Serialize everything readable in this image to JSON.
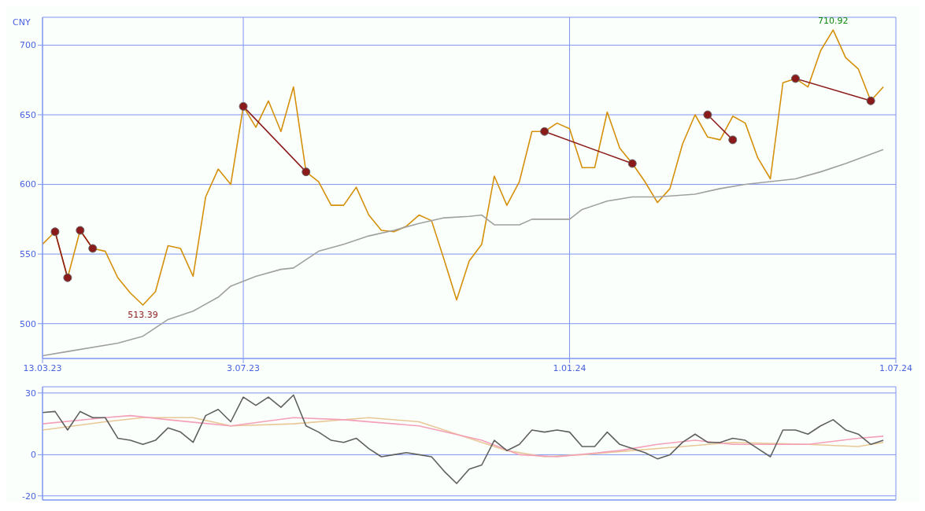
{
  "chart_data": [
    {
      "type": "line",
      "ylabel": "CNY",
      "x": [
        "2023-03-13",
        "2023-03-20",
        "2023-03-27",
        "2023-04-03",
        "2023-04-10",
        "2023-04-17",
        "2023-04-24",
        "2023-05-01",
        "2023-05-08",
        "2023-05-15",
        "2023-05-22",
        "2023-05-29",
        "2023-06-05",
        "2023-06-12",
        "2023-06-19",
        "2023-06-26",
        "2023-07-03",
        "2023-07-10",
        "2023-07-17",
        "2023-07-24",
        "2023-07-31",
        "2023-08-07",
        "2023-08-14",
        "2023-08-21",
        "2023-08-28",
        "2023-09-04",
        "2023-09-11",
        "2023-09-18",
        "2023-09-25",
        "2023-10-02",
        "2023-10-09",
        "2023-10-16",
        "2023-10-23",
        "2023-10-30",
        "2023-11-06",
        "2023-11-13",
        "2023-11-20",
        "2023-11-27",
        "2023-12-04",
        "2023-12-11",
        "2023-12-18",
        "2023-12-25",
        "2024-01-01",
        "2024-01-08",
        "2024-01-15",
        "2024-01-22",
        "2024-01-29",
        "2024-02-05",
        "2024-02-12",
        "2024-02-19",
        "2024-02-26",
        "2024-03-04",
        "2024-03-11",
        "2024-03-18",
        "2024-03-25",
        "2024-04-01",
        "2024-04-08",
        "2024-04-15",
        "2024-04-22",
        "2024-04-29",
        "2024-05-06",
        "2024-05-13",
        "2024-05-20",
        "2024-05-27",
        "2024-06-03",
        "2024-06-10",
        "2024-06-17",
        "2024-06-24"
      ],
      "series": [
        {
          "color": "#d4900a",
          "values": [
            557,
            566,
            533,
            567,
            554,
            552,
            533,
            522,
            513.39,
            523,
            556,
            554,
            534,
            591,
            611,
            600,
            656,
            641,
            660,
            638,
            670,
            609,
            602,
            585,
            585,
            598,
            578,
            567,
            566,
            570,
            578,
            574,
            546,
            517,
            545,
            557,
            606,
            585,
            602,
            638,
            638,
            644,
            640,
            612,
            612,
            652,
            626,
            615,
            602,
            587,
            597,
            629,
            650,
            634,
            632,
            649,
            644,
            619,
            604,
            673,
            676,
            670,
            696,
            710.92,
            691,
            683,
            660,
            670
          ]
        },
        {
          "color": "#a0a0a0",
          "x": [
            "2023-03-13",
            "2023-03-27",
            "2023-04-24",
            "2023-05-08",
            "2023-05-22",
            "2023-06-05",
            "2023-06-19",
            "2023-06-26",
            "2023-07-10",
            "2023-07-24",
            "2023-07-31",
            "2023-08-14",
            "2023-08-28",
            "2023-09-11",
            "2023-09-25",
            "2023-10-09",
            "2023-10-23",
            "2023-11-06",
            "2023-11-13",
            "2023-11-20",
            "2023-12-04",
            "2023-12-11",
            "2024-01-01",
            "2024-01-08",
            "2024-01-22",
            "2024-02-05",
            "2024-02-19",
            "2024-03-11",
            "2024-03-25",
            "2024-04-08",
            "2024-05-06",
            "2024-05-20",
            "2024-06-03",
            "2024-06-24"
          ],
          "values": [
            477,
            480,
            486,
            491,
            503,
            509,
            519,
            527,
            534,
            539,
            540,
            552,
            557,
            563,
            567,
            572,
            576,
            577,
            578,
            571,
            571,
            575,
            575,
            582,
            588,
            591,
            591,
            593,
            597,
            600,
            604,
            609,
            615,
            625
          ]
        },
        {
          "color": "#8b1a1a",
          "type": "line",
          "marker": "circle",
          "x": [
            "2023-03-20",
            "2023-03-27"
          ],
          "values": [
            566,
            533
          ]
        },
        {
          "color": "#8b1a1a",
          "type": "line",
          "marker": "circle",
          "x": [
            "2023-04-03",
            "2023-04-10"
          ],
          "values": [
            567,
            554
          ]
        },
        {
          "color": "#8b1a1a",
          "type": "line",
          "marker": "circle",
          "x": [
            "2023-07-03",
            "2023-08-07"
          ],
          "values": [
            656,
            609
          ]
        },
        {
          "color": "#8b1a1a",
          "type": "line",
          "marker": "circle",
          "x": [
            "2023-12-18",
            "2024-02-05"
          ],
          "values": [
            638,
            615
          ]
        },
        {
          "color": "#8b1a1a",
          "type": "line",
          "marker": "circle",
          "x": [
            "2024-03-18",
            "2024-04-01"
          ],
          "values": [
            650,
            632
          ]
        },
        {
          "color": "#8b1a1a",
          "type": "line",
          "marker": "circle",
          "x": [
            "2024-05-06",
            "2024-06-17"
          ],
          "values": [
            676,
            660
          ]
        }
      ],
      "xlim": [
        "2023-03-13",
        "2024-07-01"
      ],
      "xticks": [
        {
          "value": "2023-03-13",
          "label": "13.03.23"
        },
        {
          "value": "2023-07-03",
          "label": "3.07.23"
        },
        {
          "value": "2024-01-01",
          "label": "1.01.24"
        },
        {
          "value": "2024-07-01",
          "label": "1.07.24"
        }
      ],
      "ylim": [
        475,
        720
      ],
      "yticks": [
        500,
        550,
        600,
        650,
        700
      ],
      "grid": true,
      "marker": "none",
      "line_style": "solid",
      "annotations": [
        {
          "text": "710.92",
          "x": "2024-05-27",
          "y": 710.92
        },
        {
          "text": "513.39",
          "x": "2023-05-08",
          "y": 513.39
        }
      ]
    },
    {
      "type": "line",
      "x": [
        "2023-03-13",
        "2023-03-20",
        "2023-03-27",
        "2023-04-03",
        "2023-04-10",
        "2023-04-17",
        "2023-04-24",
        "2023-05-01",
        "2023-05-08",
        "2023-05-15",
        "2023-05-22",
        "2023-05-29",
        "2023-06-05",
        "2023-06-12",
        "2023-06-19",
        "2023-06-26",
        "2023-07-03",
        "2023-07-10",
        "2023-07-17",
        "2023-07-24",
        "2023-07-31",
        "2023-08-07",
        "2023-08-14",
        "2023-08-21",
        "2023-08-28",
        "2023-09-04",
        "2023-09-11",
        "2023-09-18",
        "2023-09-25",
        "2023-10-02",
        "2023-10-09",
        "2023-10-16",
        "2023-10-23",
        "2023-10-30",
        "2023-11-06",
        "2023-11-13",
        "2023-11-20",
        "2023-11-27",
        "2023-12-04",
        "2023-12-11",
        "2023-12-18",
        "2023-12-25",
        "2024-01-01",
        "2024-01-08",
        "2024-01-15",
        "2024-01-22",
        "2024-01-29",
        "2024-02-05",
        "2024-02-12",
        "2024-02-19",
        "2024-02-26",
        "2024-03-04",
        "2024-03-11",
        "2024-03-18",
        "2024-03-25",
        "2024-04-01",
        "2024-04-08",
        "2024-04-15",
        "2024-04-22",
        "2024-04-29",
        "2024-05-06",
        "2024-05-13",
        "2024-05-20",
        "2024-05-27",
        "2024-06-03",
        "2024-06-10",
        "2024-06-17",
        "2024-06-24"
      ],
      "series": [
        {
          "color": "#e8c896",
          "x": [
            "2023-03-13",
            "2023-04-17",
            "2023-05-08",
            "2023-06-05",
            "2023-06-26",
            "2023-07-31",
            "2023-09-11",
            "2023-10-09",
            "2023-11-06",
            "2023-11-27",
            "2023-12-18",
            "2024-01-08",
            "2024-02-05",
            "2024-03-04",
            "2024-04-01",
            "2024-05-13",
            "2024-06-10",
            "2024-06-24"
          ],
          "values": [
            12,
            16,
            18,
            18,
            14,
            15,
            18,
            16,
            8,
            2,
            -1,
            0,
            2,
            4,
            6,
            5,
            4,
            6
          ]
        },
        {
          "color": "#f4a0b8",
          "x": [
            "2023-03-13",
            "2023-04-17",
            "2023-05-01",
            "2023-05-22",
            "2023-06-26",
            "2023-07-31",
            "2023-08-28",
            "2023-10-09",
            "2023-11-13",
            "2023-12-04",
            "2023-12-25",
            "2024-01-29",
            "2024-02-19",
            "2024-03-11",
            "2024-04-01",
            "2024-05-13",
            "2024-06-10",
            "2024-06-24"
          ],
          "values": [
            15,
            18,
            19,
            17,
            14,
            18,
            17,
            14,
            7,
            0,
            -1,
            2,
            5,
            7,
            5,
            5,
            8,
            9
          ]
        },
        {
          "color": "#606060",
          "values": [
            20.5,
            21,
            12,
            21,
            18,
            18,
            8,
            7,
            5,
            7,
            13,
            11,
            6,
            19,
            22,
            16,
            28,
            24,
            28,
            23,
            29,
            14,
            11,
            7,
            6,
            8,
            3,
            -1,
            0,
            1,
            0,
            -1,
            -8,
            -14,
            -7,
            -5,
            7,
            2,
            5,
            12,
            11,
            12,
            11,
            4,
            4,
            11,
            5,
            3,
            1,
            -2,
            0,
            6,
            10,
            6,
            6,
            8,
            7,
            3,
            -1,
            12,
            12,
            10,
            14,
            17,
            12,
            10,
            5,
            7
          ]
        }
      ],
      "xlim": [
        "2023-03-13",
        "2024-07-01"
      ],
      "xticks": [
        {
          "value": "2023-07-03",
          "label": null
        },
        {
          "value": "2024-01-01",
          "label": null
        }
      ],
      "ylim": [
        -22,
        33
      ],
      "yticks": [
        30,
        0,
        -20
      ],
      "grid": true,
      "marker": "none",
      "line_style": "solid",
      "tick_labels": "y"
    }
  ]
}
